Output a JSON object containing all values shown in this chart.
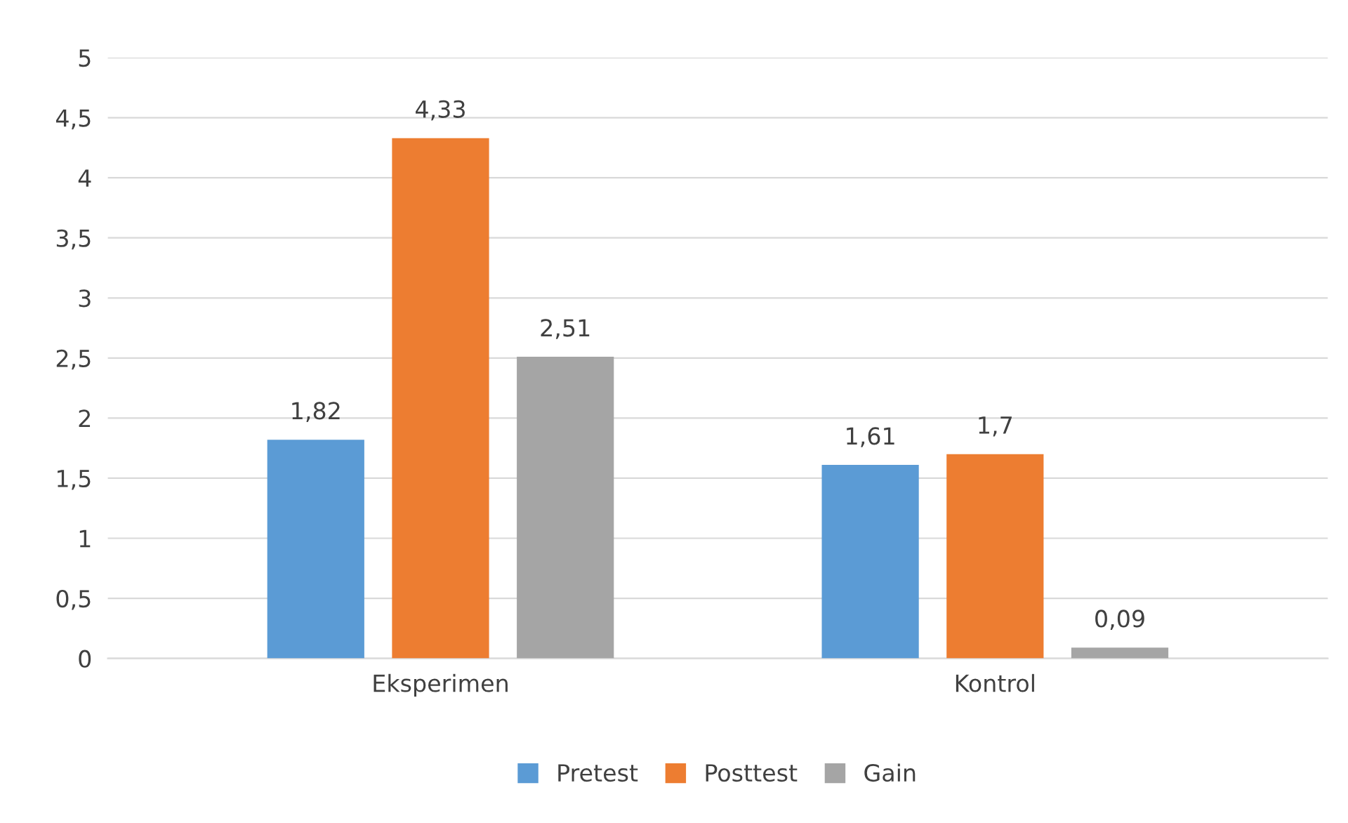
{
  "chart_data": {
    "type": "bar",
    "categories": [
      "Eksperimen",
      "Kontrol"
    ],
    "series": [
      {
        "name": "Pretest",
        "color": "#5b9bd5",
        "values": [
          1.82,
          1.61
        ],
        "value_labels": [
          "1,82",
          "1,61"
        ]
      },
      {
        "name": "Posttest",
        "color": "#ed7d31",
        "values": [
          4.33,
          1.7
        ],
        "value_labels": [
          "4,33",
          "1,7"
        ]
      },
      {
        "name": "Gain",
        "color": "#a5a5a5",
        "values": [
          2.51,
          0.09
        ],
        "value_labels": [
          "2,51",
          "0,09"
        ]
      }
    ],
    "ylim": [
      0,
      5
    ],
    "yticks": [
      0,
      {
        "value": 0.5,
        "label": "0,5"
      },
      1,
      {
        "value": 1.5,
        "label": "1,5"
      },
      2,
      {
        "value": 2.5,
        "label": "2,5"
      },
      3,
      {
        "value": 3.5,
        "label": "3,5"
      },
      4,
      {
        "value": 4.5,
        "label": "4,5"
      },
      5
    ],
    "grid": "y",
    "legend": "bottom"
  }
}
